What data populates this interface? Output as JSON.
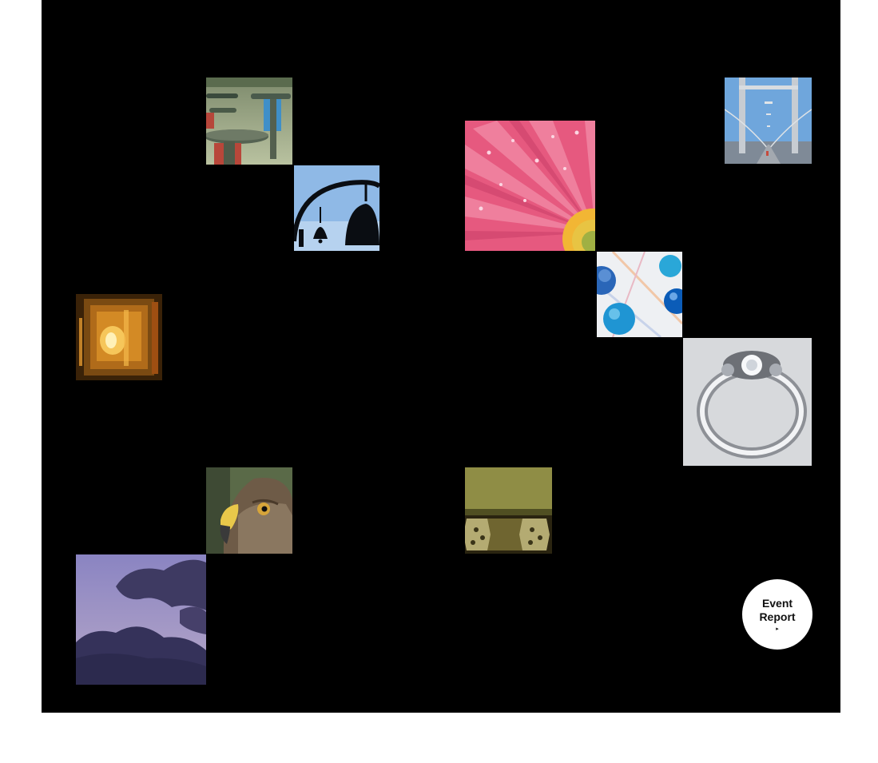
{
  "event_report": {
    "line1": "Event",
    "line2": "Report",
    "arrow": "▸"
  },
  "tiles": [
    {
      "name": "valves-photo"
    },
    {
      "name": "bells-photo"
    },
    {
      "name": "pink-flower-photo"
    },
    {
      "name": "suspension-bridge-photo"
    },
    {
      "name": "marbles-photo"
    },
    {
      "name": "candle-glass-photo"
    },
    {
      "name": "diamond-ring-photo"
    },
    {
      "name": "hawk-photo"
    },
    {
      "name": "metal-hinge-photo"
    },
    {
      "name": "purple-clouds-photo"
    }
  ],
  "colors": {
    "stage_background": "#000000",
    "page_background": "#ffffff",
    "badge_background": "#ffffff"
  }
}
